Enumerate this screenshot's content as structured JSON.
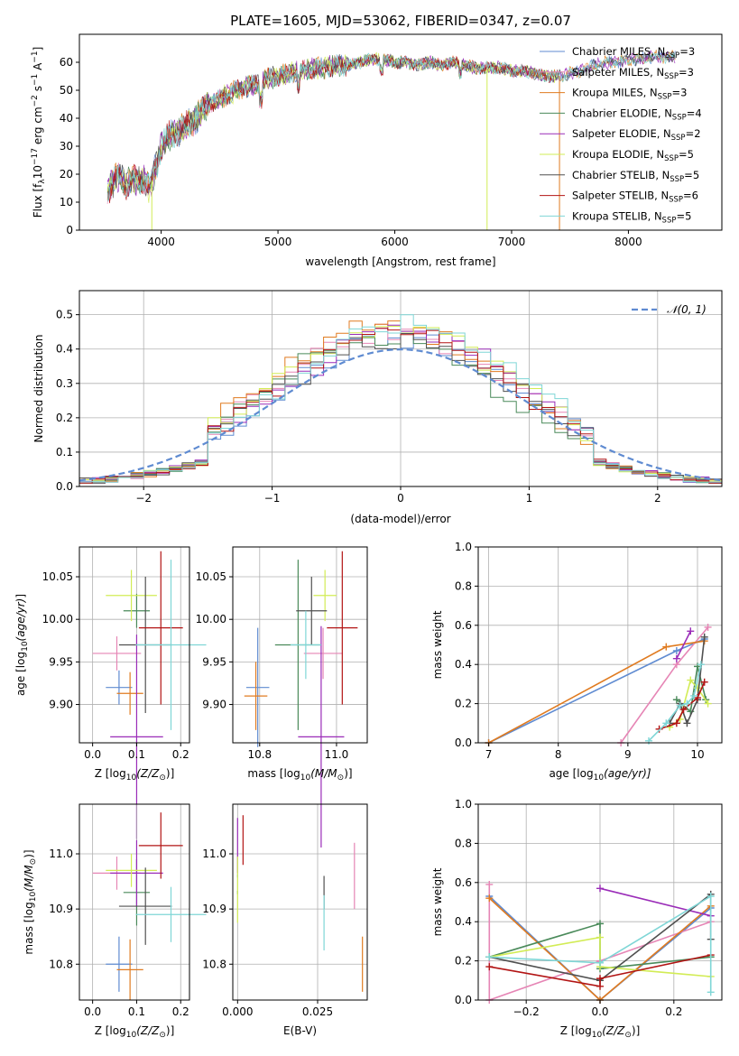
{
  "title": "PLATE=1605, MJD=53062, FIBERID=0347, z=0.07",
  "chart_data": [
    {
      "id": "spectrum",
      "type": "line",
      "xlabel": "wavelength [Angstrom, rest frame]",
      "ylabel": "Flux [f$_\\lambda$10$^{-17}$ erg cm$^{-2}$ s$^{-1}$ A$^{-1}$]",
      "ylabel_parts": {
        "pre": "Flux [f",
        "lambda": "λ",
        "mid": "10",
        "exp1": "−17",
        "erg": " erg cm",
        "exp2": "−2",
        "s": " s",
        "exp3": "−1",
        "A": " A",
        "exp4": "−1",
        "post": "]"
      },
      "xlim": [
        3300,
        8800
      ],
      "ylim": [
        0,
        70
      ],
      "xticks": [
        4000,
        5000,
        6000,
        7000,
        8000
      ],
      "yticks": [
        0,
        10,
        20,
        30,
        40,
        50,
        60
      ],
      "legend_position": "upper right",
      "spectrum_outline": {
        "x": [
          3540,
          3600,
          3650,
          3700,
          3750,
          3800,
          3850,
          3900,
          3950,
          4000,
          4050,
          4100,
          4200,
          4300,
          4400,
          4500,
          4600,
          4700,
          4800,
          4900,
          5000,
          5100,
          5200,
          5300,
          5400,
          5500,
          5600,
          5700,
          5800,
          5900,
          6000,
          6100,
          6200,
          6300,
          6400,
          6500,
          6600,
          6700,
          6800,
          6900,
          7000,
          7100,
          7200,
          7300,
          7400,
          7500,
          7600,
          7700,
          7800,
          7900,
          8000,
          8100,
          8200,
          8300,
          8400
        ],
        "y": [
          14,
          18,
          20,
          16,
          19,
          17,
          18,
          15,
          22,
          30,
          33,
          34,
          37,
          40,
          45,
          47,
          49,
          51,
          52,
          54,
          55,
          56,
          57,
          58,
          58,
          59,
          59,
          60,
          61,
          61,
          60,
          60,
          59,
          60,
          59,
          60,
          59,
          58,
          58,
          58,
          57,
          57,
          56,
          55,
          55,
          56,
          57,
          59,
          60,
          60,
          61,
          61,
          62,
          62,
          62
        ]
      },
      "dropouts_x": [
        3920,
        6790,
        7410
      ],
      "series": [
        {
          "name": "Chabrier MILES",
          "nssp": "3",
          "color": "#5f8bd1"
        },
        {
          "name": "Salpeter MILES",
          "nssp": "3",
          "color": "#e685b5"
        },
        {
          "name": "Kroupa MILES",
          "nssp": "3",
          "color": "#e07b20"
        },
        {
          "name": "Chabrier ELODIE",
          "nssp": "4",
          "color": "#4a8a5a"
        },
        {
          "name": "Salpeter ELODIE",
          "nssp": "2",
          "color": "#9a2cb8"
        },
        {
          "name": "Kroupa ELODIE",
          "nssp": "5",
          "color": "#d2ec55"
        },
        {
          "name": "Chabrier STELIB",
          "nssp": "5",
          "color": "#505050"
        },
        {
          "name": "Salpeter STELIB",
          "nssp": "6",
          "color": "#b21414"
        },
        {
          "name": "Kroupa STELIB",
          "nssp": "5",
          "color": "#7fd6d6"
        }
      ],
      "nssp_label": "N",
      "nssp_sub": "SSP"
    },
    {
      "id": "residuals",
      "type": "histogram",
      "xlabel": "(data-model)/error",
      "ylabel": "Normed distribution",
      "xlim": [
        -2.5,
        2.5
      ],
      "ylim": [
        0,
        0.57
      ],
      "xticks": [
        -2,
        -1,
        0,
        1,
        2
      ],
      "xtick_labels": [
        "−2",
        "−1",
        "0",
        "1",
        "2"
      ],
      "yticks": [
        0.0,
        0.1,
        0.2,
        0.3,
        0.4,
        0.5
      ],
      "ytick_labels": [
        "0.0",
        "0.1",
        "0.2",
        "0.3",
        "0.4",
        "0.5"
      ],
      "bin_width": 0.1,
      "reference_curve": {
        "label": "𝒩(0, 1)",
        "color": "#5f8bd1",
        "style": "dashed"
      },
      "legend_position": "upper right"
    },
    {
      "id": "age_vs_Z",
      "type": "scatter",
      "xlabel_main": "Z [log",
      "xlabel_sub": "10",
      "xlabel_rest": "(Z/Z",
      "xlabel_end": ")]",
      "ylabel": "age  [log10(age/yr)]",
      "xlim": [
        -0.03,
        0.22
      ],
      "ylim": [
        9.855,
        10.085
      ],
      "xticks": [
        0.0,
        0.1,
        0.2
      ],
      "xtick_labels": [
        "0.0",
        "0.1",
        "0.2"
      ],
      "yticks": [
        9.9,
        9.95,
        10.0,
        10.05
      ],
      "ytick_labels": [
        "9.90",
        "9.95",
        "10.00",
        "10.05"
      ],
      "points": [
        {
          "series": "Chabrier MILES",
          "x": 0.06,
          "xerr": 0.03,
          "y": 9.92,
          "yerr": 0.02
        },
        {
          "series": "Salpeter MILES",
          "x": 0.055,
          "xerr": 0.055,
          "y": 9.96,
          "yerr": 0.02
        },
        {
          "series": "Kroupa MILES",
          "x": 0.085,
          "xerr": 0.03,
          "y": 9.913,
          "yerr": 0.025
        },
        {
          "series": "Chabrier ELODIE",
          "x": 0.1,
          "xerr": 0.03,
          "y": 10.01,
          "yerr": 0.02
        },
        {
          "series": "Salpeter ELODIE",
          "x": 0.1,
          "xerr": 0.06,
          "y": 9.862,
          "yerr": 0.12
        },
        {
          "series": "Kroupa ELODIE",
          "x": 0.088,
          "xerr": 0.058,
          "y": 10.028,
          "yerr": 0.03
        },
        {
          "series": "Chabrier STELIB",
          "x": 0.12,
          "xerr": 0.06,
          "y": 9.97,
          "yerr": 0.08
        },
        {
          "series": "Salpeter STELIB",
          "x": 0.155,
          "xerr": 0.05,
          "y": 9.99,
          "yerr": 0.09
        },
        {
          "series": "Kroupa STELIB",
          "x": 0.178,
          "xerr": 0.08,
          "y": 9.97,
          "yerr": 0.1
        }
      ]
    },
    {
      "id": "age_vs_mass",
      "type": "scatter",
      "xlabel_main": "mass [log",
      "xlabel_sub": "10",
      "xlabel_rest": "(M/M",
      "xlabel_end": ")]",
      "xlim": [
        10.73,
        11.08
      ],
      "ylim": [
        9.855,
        10.085
      ],
      "xticks": [
        10.8,
        11.0
      ],
      "xtick_labels": [
        "10.8",
        "11.0"
      ],
      "yticks": [
        9.9,
        9.95,
        10.0,
        10.05
      ],
      "ytick_labels": [
        "9.90",
        "9.95",
        "10.00",
        "10.05"
      ],
      "points": [
        {
          "series": "Chabrier MILES",
          "x": 10.795,
          "xerr": 0.03,
          "y": 9.92,
          "yerr": 0.07
        },
        {
          "series": "Salpeter MILES",
          "x": 10.965,
          "xerr": 0.05,
          "y": 9.96,
          "yerr": 0.03
        },
        {
          "series": "Kroupa MILES",
          "x": 10.79,
          "xerr": 0.03,
          "y": 9.91,
          "yerr": 0.04
        },
        {
          "series": "Chabrier ELODIE",
          "x": 10.9,
          "xerr": 0.06,
          "y": 9.97,
          "yerr": 0.1
        },
        {
          "series": "Salpeter ELODIE",
          "x": 10.96,
          "xerr": 0.06,
          "y": 9.862,
          "yerr": 0.13
        },
        {
          "series": "Kroupa ELODIE",
          "x": 10.97,
          "xerr": 0.03,
          "y": 10.028,
          "yerr": 0.03
        },
        {
          "series": "Chabrier STELIB",
          "x": 10.935,
          "xerr": 0.04,
          "y": 10.01,
          "yerr": 0.04
        },
        {
          "series": "Salpeter STELIB",
          "x": 11.015,
          "xerr": 0.04,
          "y": 9.99,
          "yerr": 0.09
        },
        {
          "series": "Kroupa STELIB",
          "x": 10.92,
          "xerr": 0.04,
          "y": 9.97,
          "yerr": 0.04
        }
      ]
    },
    {
      "id": "weight_vs_age",
      "type": "line",
      "xlabel_main": "age  [log",
      "xlabel_sub": "10",
      "xlabel_rest": "(age/yr)]",
      "ylabel": "mass weight",
      "xlim": [
        6.85,
        10.35
      ],
      "ylim": [
        0,
        1
      ],
      "xticks": [
        7,
        8,
        9,
        10
      ],
      "xtick_labels": [
        "7",
        "8",
        "9",
        "10"
      ],
      "yticks": [
        0.0,
        0.2,
        0.4,
        0.6,
        0.8,
        1.0
      ],
      "ytick_labels": [
        "0.0",
        "0.2",
        "0.4",
        "0.6",
        "0.8",
        "1.0"
      ],
      "series": [
        {
          "name": "Chabrier MILES",
          "x": [
            7.0,
            9.7,
            10.1
          ],
          "y": [
            0.0,
            0.47,
            0.53
          ]
        },
        {
          "name": "Salpeter MILES",
          "x": [
            8.9,
            9.7,
            10.15
          ],
          "y": [
            0.0,
            0.4,
            0.59
          ]
        },
        {
          "name": "Kroupa MILES",
          "x": [
            7.0,
            9.55,
            10.1
          ],
          "y": [
            0.0,
            0.49,
            0.52
          ]
        },
        {
          "name": "Chabrier ELODIE",
          "x": [
            9.7,
            9.9,
            10.0,
            10.12
          ],
          "y": [
            0.22,
            0.16,
            0.39,
            0.22
          ]
        },
        {
          "name": "Salpeter ELODIE",
          "x": [
            9.7,
            9.9
          ],
          "y": [
            0.43,
            0.57
          ]
        },
        {
          "name": "Kroupa ELODIE",
          "x": [
            9.6,
            9.75,
            9.9,
            10.0,
            10.15
          ],
          "y": [
            0.08,
            0.12,
            0.32,
            0.28,
            0.2
          ]
        },
        {
          "name": "Chabrier STELIB",
          "x": [
            9.6,
            9.75,
            9.85,
            10.0,
            10.1
          ],
          "y": [
            0.1,
            0.2,
            0.1,
            0.22,
            0.54
          ]
        },
        {
          "name": "Salpeter STELIB",
          "x": [
            9.45,
            9.7,
            9.8,
            10.0,
            10.1
          ],
          "y": [
            0.07,
            0.1,
            0.17,
            0.23,
            0.31
          ]
        },
        {
          "name": "Kroupa STELIB",
          "x": [
            9.3,
            9.55,
            9.75,
            9.85,
            9.95,
            10.05
          ],
          "y": [
            0.01,
            0.1,
            0.19,
            0.2,
            0.24,
            0.4
          ]
        }
      ]
    },
    {
      "id": "mass_vs_Z",
      "type": "scatter",
      "xlabel_main": "Z [log",
      "xlabel_sub": "10",
      "xlabel_rest": "(Z/Z",
      "xlabel_end": ")]",
      "xlim": [
        -0.03,
        0.22
      ],
      "ylim": [
        10.735,
        11.09
      ],
      "xticks": [
        0.0,
        0.1,
        0.2
      ],
      "xtick_labels": [
        "0.0",
        "0.1",
        "0.2"
      ],
      "yticks": [
        10.8,
        10.9,
        11.0
      ],
      "ytick_labels": [
        "10.8",
        "10.9",
        "11.0"
      ],
      "points": [
        {
          "series": "Chabrier MILES",
          "x": 0.06,
          "xerr": 0.03,
          "y": 10.8,
          "yerr": 0.05
        },
        {
          "series": "Salpeter MILES",
          "x": 0.055,
          "xerr": 0.055,
          "y": 10.965,
          "yerr": 0.03
        },
        {
          "series": "Kroupa MILES",
          "x": 0.085,
          "xerr": 0.03,
          "y": 10.79,
          "yerr": 0.055
        },
        {
          "series": "Chabrier ELODIE",
          "x": 0.1,
          "xerr": 0.03,
          "y": 10.93,
          "yerr": 0.06
        },
        {
          "series": "Salpeter ELODIE",
          "x": 0.1,
          "xerr": 0.06,
          "y": 10.965,
          "yerr": 0.06
        },
        {
          "series": "Kroupa ELODIE",
          "x": 0.088,
          "xerr": 0.058,
          "y": 10.97,
          "yerr": 0.03
        },
        {
          "series": "Chabrier STELIB",
          "x": 0.12,
          "xerr": 0.06,
          "y": 10.905,
          "yerr": 0.07
        },
        {
          "series": "Salpeter STELIB",
          "x": 0.155,
          "xerr": 0.05,
          "y": 11.015,
          "yerr": 0.06
        },
        {
          "series": "Kroupa STELIB",
          "x": 0.178,
          "xerr": 0.08,
          "y": 10.89,
          "yerr": 0.05
        }
      ]
    },
    {
      "id": "mass_vs_ebv",
      "type": "scatter",
      "xlabel": "E(B-V)",
      "xlim": [
        -0.0015,
        0.0405
      ],
      "ylim": [
        10.735,
        11.09
      ],
      "xticks": [
        0.0,
        0.025
      ],
      "xtick_labels": [
        "0.000",
        "0.025"
      ],
      "yticks": [
        10.8,
        10.9,
        11.0
      ],
      "ytick_labels": [
        "10.8",
        "10.9",
        "11.0"
      ],
      "points": [
        {
          "series": "Chabrier MILES",
          "x": 0.0,
          "y": 10.96,
          "yerr": 0.0
        },
        {
          "series": "Salpeter MILES",
          "x": 0.0365,
          "y": 10.96,
          "yerr": 0.06
        },
        {
          "series": "Kroupa MILES",
          "x": 0.039,
          "y": 10.8,
          "yerr": 0.05
        },
        {
          "series": "Chabrier ELODIE",
          "x": 0.0,
          "y": 10.93,
          "yerr": 0.0
        },
        {
          "series": "Salpeter ELODIE",
          "x": 0.0,
          "y": 11.015,
          "yerr": 0.05
        },
        {
          "series": "Kroupa ELODIE",
          "x": 0.0,
          "y": 10.935,
          "yerr": 0.06
        },
        {
          "series": "Chabrier STELIB",
          "x": 0.027,
          "y": 10.93,
          "yerr": 0.03
        },
        {
          "series": "Salpeter STELIB",
          "x": 0.0017,
          "y": 11.025,
          "yerr": 0.045
        },
        {
          "series": "Kroupa STELIB",
          "x": 0.027,
          "y": 10.875,
          "yerr": 0.05
        }
      ]
    },
    {
      "id": "weight_vs_Z",
      "type": "line",
      "xlabel_main": "Z [log",
      "xlabel_sub": "10",
      "xlabel_rest": "(Z/Z",
      "xlabel_end": ")]",
      "ylabel": "mass weight",
      "xlim": [
        -0.33,
        0.33
      ],
      "ylim": [
        0,
        1
      ],
      "xticks": [
        -0.2,
        0.0,
        0.2
      ],
      "xtick_labels": [
        "−0.2",
        "0.0",
        "0.2"
      ],
      "yticks": [
        0.0,
        0.2,
        0.4,
        0.6,
        0.8,
        1.0
      ],
      "ytick_labels": [
        "0.0",
        "0.2",
        "0.4",
        "0.6",
        "0.8",
        "1.0"
      ],
      "series": [
        {
          "name": "Chabrier MILES",
          "x": [
            -0.3,
            0.0,
            0.3
          ],
          "y": [
            0.53,
            0.0,
            0.47
          ]
        },
        {
          "name": "Salpeter MILES",
          "x": [
            -0.3,
            -0.3,
            0.0,
            0.3
          ],
          "y": [
            0.59,
            0.0,
            0.2,
            0.4
          ]
        },
        {
          "name": "Kroupa MILES",
          "x": [
            -0.3,
            0.0,
            0.3
          ],
          "y": [
            0.52,
            0.0,
            0.48
          ]
        },
        {
          "name": "Chabrier ELODIE",
          "x": [
            -0.3,
            0.0,
            0.0,
            0.3
          ],
          "y": [
            0.22,
            0.39,
            0.16,
            0.22
          ]
        },
        {
          "name": "Salpeter ELODIE",
          "x": [
            0.0,
            0.3
          ],
          "y": [
            0.57,
            0.43
          ]
        },
        {
          "name": "Kroupa ELODIE",
          "x": [
            -0.3,
            0.0,
            0.0,
            0.3
          ],
          "y": [
            0.22,
            0.32,
            0.17,
            0.12
          ]
        },
        {
          "name": "Chabrier STELIB",
          "x": [
            -0.3,
            0.0,
            0.3,
            0.3
          ],
          "y": [
            0.22,
            0.1,
            0.54,
            0.31
          ]
        },
        {
          "name": "Salpeter STELIB",
          "x": [
            -0.3,
            0.0,
            0.0,
            0.3
          ],
          "y": [
            0.17,
            0.07,
            0.11,
            0.23
          ]
        },
        {
          "name": "Kroupa STELIB",
          "x": [
            -0.3,
            0.0,
            0.3,
            0.3
          ],
          "y": [
            0.22,
            0.19,
            0.53,
            0.04
          ]
        }
      ]
    }
  ]
}
